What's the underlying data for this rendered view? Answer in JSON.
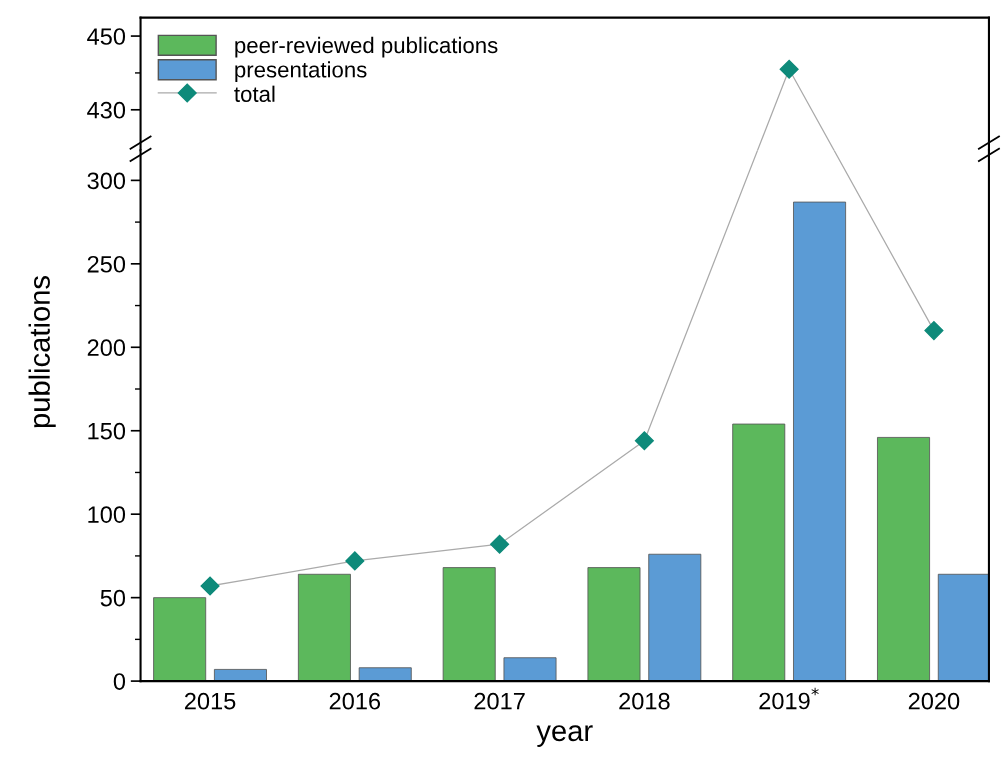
{
  "chart_data": [
    {
      "type": "line",
      "series": [
        {
          "color": "#0e8a7a",
          "marker": "diamond",
          "values": [
            null,
            null,
            null,
            null,
            441,
            null
          ]
        }
      ],
      "ylim": [
        419,
        455
      ],
      "yticks": [
        430,
        450
      ],
      "tick_labels": "y",
      "grid": false
    },
    {
      "type": "bar",
      "xlabel": "year",
      "ylabel": "publications",
      "categories": [
        "2015",
        "2016",
        "2017",
        "2018",
        "2019$^{*}$",
        "2020"
      ],
      "series": [
        {
          "name": "peer-reviewed publications",
          "color": "#5cb85c",
          "values": [
            50,
            64,
            68,
            68,
            154,
            146
          ]
        },
        {
          "name": "presentations",
          "color": "#5b9bd5",
          "values": [
            7,
            8,
            14,
            76,
            287,
            64
          ]
        },
        {
          "name": "total",
          "type": "line",
          "color": "#0e8a7a",
          "marker": "diamond",
          "values": [
            57,
            72,
            82,
            144,
            null,
            210
          ]
        }
      ],
      "ylim": [
        0,
        318
      ],
      "yticks": [
        0,
        50,
        100,
        150,
        200,
        250,
        300
      ],
      "legend": "top left",
      "grid": false
    }
  ]
}
